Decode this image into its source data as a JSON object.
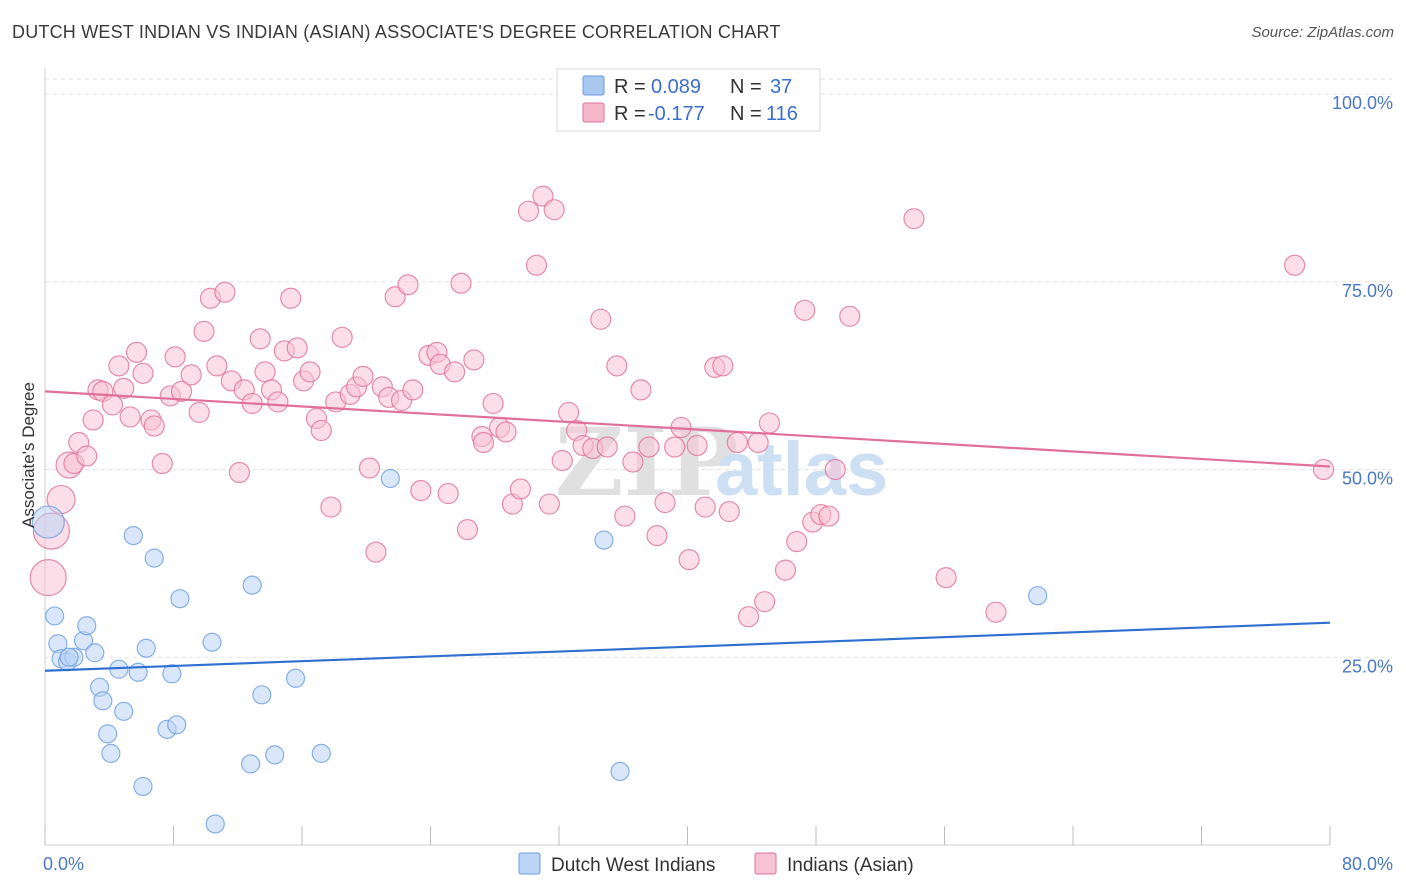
{
  "header": {
    "title": "DUTCH WEST INDIAN VS INDIAN (ASIAN) ASSOCIATE'S DEGREE CORRELATION CHART",
    "source": "Source: ZipAtlas.com"
  },
  "watermark": {
    "zip": "ZIP",
    "atlas": "atlas"
  },
  "legend_top": {
    "rows": [
      {
        "r_label": "R =",
        "r_value": "0.089",
        "n_label": "N =",
        "n_value": "37",
        "color": "#a9c8f0"
      },
      {
        "r_label": "R =",
        "r_value": "-0.177",
        "n_label": "N =",
        "n_value": "116",
        "color": "#f5b8cb"
      }
    ]
  },
  "chart_data": {
    "type": "scatter",
    "title": "DUTCH WEST INDIAN VS INDIAN (ASIAN) ASSOCIATE'S DEGREE CORRELATION CHART",
    "xlabel": "",
    "ylabel": "Associate's Degree",
    "xlim": [
      0,
      80
    ],
    "ylim": [
      0,
      102
    ],
    "x_tick_labels": [
      "0.0%",
      "80.0%"
    ],
    "y_tick_labels": [
      "25.0%",
      "50.0%",
      "75.0%",
      "100.0%"
    ],
    "y_ticks": [
      25,
      50,
      75,
      100
    ],
    "grid": true,
    "legend_position": "bottom",
    "series": [
      {
        "name": "Dutch West Indians",
        "color": "#6b9de0",
        "fill": "#bcd4f5",
        "trend": [
          [
            0,
            23.2
          ],
          [
            80,
            29.6
          ]
        ],
        "points": [
          [
            0.2,
            43,
            16
          ],
          [
            0.6,
            30.5,
            9
          ],
          [
            0.8,
            26.8,
            9
          ],
          [
            1.0,
            24.8,
            9
          ],
          [
            1.4,
            24.4,
            9
          ],
          [
            1.8,
            25,
            9
          ],
          [
            2.4,
            27.2,
            9
          ],
          [
            2.6,
            29.2,
            9
          ],
          [
            3.1,
            25.6,
            9
          ],
          [
            3.4,
            21,
            9
          ],
          [
            3.6,
            19.2,
            9
          ],
          [
            3.9,
            14.8,
            9
          ],
          [
            4.1,
            12.2,
            9
          ],
          [
            4.6,
            23.4,
            9
          ],
          [
            4.9,
            17.8,
            9
          ],
          [
            5.5,
            41.2,
            9
          ],
          [
            5.8,
            23,
            9
          ],
          [
            6.1,
            7.8,
            9
          ],
          [
            6.3,
            26.2,
            9
          ],
          [
            6.8,
            38.2,
            9
          ],
          [
            7.6,
            15.4,
            9
          ],
          [
            7.9,
            22.8,
            9
          ],
          [
            8.2,
            16,
            9
          ],
          [
            8.4,
            32.8,
            9
          ],
          [
            10.4,
            27,
            9
          ],
          [
            10.6,
            2.8,
            9
          ],
          [
            12.8,
            10.8,
            9
          ],
          [
            12.9,
            34.6,
            9
          ],
          [
            13.5,
            20,
            9
          ],
          [
            14.3,
            12,
            9
          ],
          [
            15.6,
            22.2,
            9
          ],
          [
            17.2,
            12.2,
            9
          ],
          [
            21.5,
            48.8,
            9
          ],
          [
            34.8,
            40.6,
            9
          ],
          [
            35.8,
            9.8,
            9
          ],
          [
            61.8,
            33.2,
            9
          ],
          [
            1.5,
            25,
            9
          ]
        ]
      },
      {
        "name": "Indians (Asian)",
        "color": "#e0709a",
        "fill": "#f7c2d3",
        "trend": [
          [
            0,
            60.4
          ],
          [
            80,
            50.4
          ]
        ],
        "points": [
          [
            0.2,
            35.6,
            18
          ],
          [
            0.4,
            41.8,
            18
          ],
          [
            1.0,
            46,
            14
          ],
          [
            1.5,
            50.6,
            13
          ],
          [
            1.8,
            50.8,
            10
          ],
          [
            2.1,
            53.6,
            10
          ],
          [
            2.6,
            51.8,
            10
          ],
          [
            3.0,
            56.6,
            10
          ],
          [
            3.3,
            60.6,
            10
          ],
          [
            3.6,
            60.4,
            10
          ],
          [
            4.2,
            58.6,
            10
          ],
          [
            4.6,
            63.8,
            10
          ],
          [
            4.9,
            60.8,
            10
          ],
          [
            5.3,
            57,
            10
          ],
          [
            5.7,
            65.6,
            10
          ],
          [
            6.1,
            62.8,
            10
          ],
          [
            6.6,
            56.6,
            10
          ],
          [
            6.8,
            55.8,
            10
          ],
          [
            7.3,
            50.8,
            10
          ],
          [
            7.8,
            59.8,
            10
          ],
          [
            8.1,
            65,
            10
          ],
          [
            8.5,
            60.4,
            10
          ],
          [
            9.1,
            62.6,
            10
          ],
          [
            9.6,
            57.6,
            10
          ],
          [
            9.9,
            68.4,
            10
          ],
          [
            10.3,
            72.8,
            10
          ],
          [
            10.7,
            63.8,
            10
          ],
          [
            11.2,
            73.6,
            10
          ],
          [
            11.6,
            61.8,
            10
          ],
          [
            12.1,
            49.6,
            10
          ],
          [
            12.4,
            60.6,
            10
          ],
          [
            12.9,
            58.8,
            10
          ],
          [
            13.4,
            67.4,
            10
          ],
          [
            13.7,
            63,
            10
          ],
          [
            14.1,
            60.6,
            10
          ],
          [
            14.5,
            59,
            10
          ],
          [
            14.9,
            65.8,
            10
          ],
          [
            15.3,
            72.8,
            10
          ],
          [
            15.7,
            66.2,
            10
          ],
          [
            16.1,
            61.8,
            10
          ],
          [
            16.5,
            63,
            10
          ],
          [
            16.9,
            56.8,
            10
          ],
          [
            17.2,
            55.2,
            10
          ],
          [
            17.8,
            45,
            10
          ],
          [
            18.1,
            59,
            10
          ],
          [
            18.5,
            67.6,
            10
          ],
          [
            19.0,
            60,
            10
          ],
          [
            19.4,
            61,
            10
          ],
          [
            19.8,
            62.4,
            10
          ],
          [
            20.2,
            50.2,
            10
          ],
          [
            20.6,
            39,
            10
          ],
          [
            21.0,
            61,
            10
          ],
          [
            21.4,
            59.6,
            10
          ],
          [
            21.8,
            73,
            10
          ],
          [
            22.2,
            59.2,
            10
          ],
          [
            22.6,
            74.6,
            10
          ],
          [
            22.9,
            60.6,
            10
          ],
          [
            23.4,
            47.2,
            10
          ],
          [
            23.9,
            65.2,
            10
          ],
          [
            24.4,
            65.6,
            10
          ],
          [
            24.6,
            64,
            10
          ],
          [
            25.1,
            46.8,
            10
          ],
          [
            25.5,
            63,
            10
          ],
          [
            25.9,
            74.8,
            10
          ],
          [
            26.3,
            42,
            10
          ],
          [
            26.7,
            64.6,
            10
          ],
          [
            27.2,
            54.4,
            10
          ],
          [
            27.3,
            53.6,
            10
          ],
          [
            27.9,
            58.8,
            10
          ],
          [
            28.3,
            55.6,
            10
          ],
          [
            28.7,
            55,
            10
          ],
          [
            29.1,
            45.4,
            10
          ],
          [
            29.6,
            47.4,
            10
          ],
          [
            30.1,
            84.4,
            10
          ],
          [
            30.6,
            77.2,
            10
          ],
          [
            31.0,
            86.4,
            10
          ],
          [
            31.4,
            45.4,
            10
          ],
          [
            31.7,
            84.6,
            10
          ],
          [
            32.2,
            51.2,
            10
          ],
          [
            32.6,
            57.6,
            10
          ],
          [
            33.1,
            55.2,
            10
          ],
          [
            33.5,
            53.2,
            10
          ],
          [
            34.1,
            52.8,
            10
          ],
          [
            34.6,
            70,
            10
          ],
          [
            35.0,
            53,
            10
          ],
          [
            35.6,
            63.8,
            10
          ],
          [
            36.1,
            43.8,
            10
          ],
          [
            36.6,
            51,
            10
          ],
          [
            37.1,
            60.6,
            10
          ],
          [
            37.6,
            53,
            10
          ],
          [
            38.1,
            41.2,
            10
          ],
          [
            38.6,
            45.6,
            10
          ],
          [
            39.2,
            53,
            10
          ],
          [
            39.6,
            55.6,
            10
          ],
          [
            40.1,
            38,
            10
          ],
          [
            40.6,
            53.2,
            10
          ],
          [
            41.1,
            45,
            10
          ],
          [
            41.7,
            63.6,
            10
          ],
          [
            42.2,
            63.8,
            10
          ],
          [
            42.6,
            44.4,
            10
          ],
          [
            43.1,
            53.6,
            10
          ],
          [
            43.8,
            30.4,
            10
          ],
          [
            44.4,
            53.6,
            10
          ],
          [
            44.8,
            32.4,
            10
          ],
          [
            45.1,
            56.2,
            10
          ],
          [
            46.1,
            36.6,
            10
          ],
          [
            46.8,
            40.4,
            10
          ],
          [
            47.3,
            71.2,
            10
          ],
          [
            47.8,
            43,
            10
          ],
          [
            48.3,
            44,
            10
          ],
          [
            48.8,
            43.8,
            10
          ],
          [
            49.2,
            50,
            10
          ],
          [
            50.1,
            70.4,
            10
          ],
          [
            54.1,
            83.4,
            10
          ],
          [
            56.1,
            35.6,
            10
          ],
          [
            59.2,
            31,
            10
          ],
          [
            77.8,
            77.2,
            10
          ],
          [
            79.6,
            50,
            10
          ]
        ]
      }
    ]
  },
  "legend_bottom": {
    "items": [
      {
        "label": "Dutch West Indians",
        "color": "#bcd4f5",
        "border": "#6b9de0"
      },
      {
        "label": "Indians (Asian)",
        "color": "#f7c2d3",
        "border": "#e0709a"
      }
    ]
  }
}
